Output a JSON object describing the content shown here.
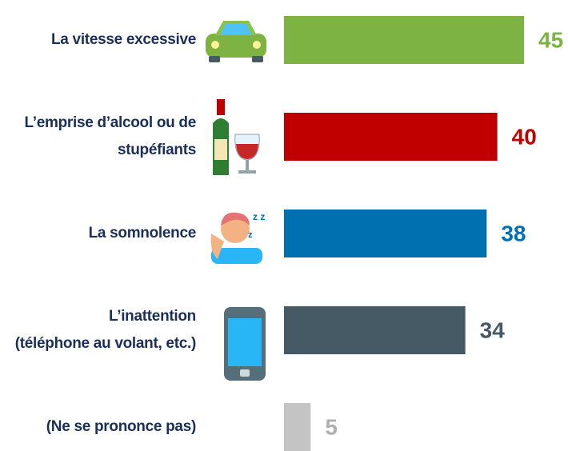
{
  "chart_data": {
    "type": "bar",
    "categories": [
      [
        "La vitesse excessive"
      ],
      [
        "L’emprise d’alcool ou de",
        "stupéfiants"
      ],
      [
        "La somnolence"
      ],
      [
        "L’inattention",
        "(téléphone au volant, etc.)"
      ],
      [
        "(Ne se prononce pas)"
      ]
    ],
    "values": [
      45,
      40,
      38,
      34,
      5
    ],
    "colors": [
      "#7cb342",
      "#c00000",
      "#0070b0",
      "#455a64",
      "#c4c4c4"
    ],
    "label_colors": [
      "#7cb342",
      "#c00000",
      "#0070b0",
      "#455a64",
      "#b0b0b0"
    ]
  }
}
